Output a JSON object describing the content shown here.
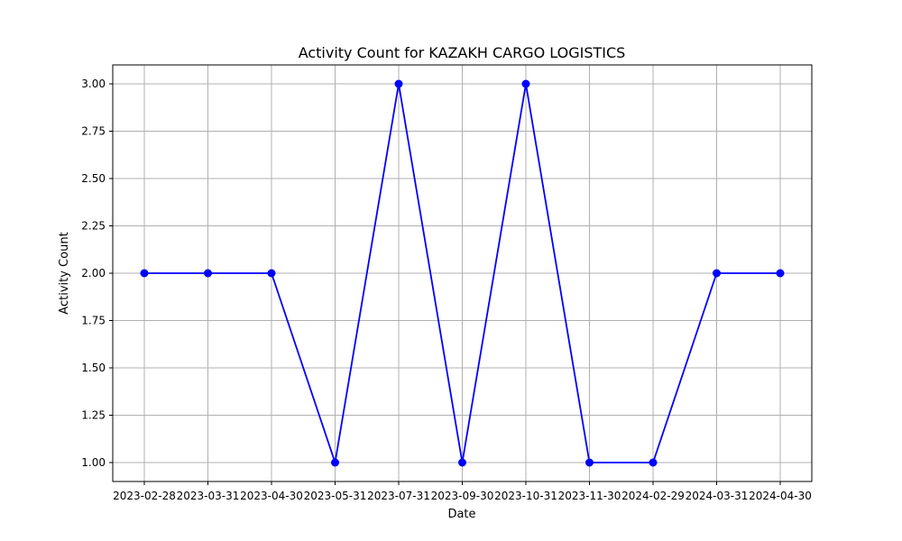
{
  "chart_data": {
    "type": "line",
    "title": "Activity Count for KAZAKH CARGO LOGISTICS",
    "xlabel": "Date",
    "ylabel": "Activity Count",
    "categories": [
      "2023-02-28",
      "2023-03-31",
      "2023-04-30",
      "2023-05-31",
      "2023-07-31",
      "2023-09-30",
      "2023-10-31",
      "2023-11-30",
      "2024-02-29",
      "2024-03-31",
      "2024-04-30"
    ],
    "values": [
      2,
      2,
      2,
      1,
      3,
      1,
      3,
      1,
      1,
      2,
      2
    ],
    "ylim": [
      0.9,
      3.1
    ],
    "yticks": [
      "1.00",
      "1.25",
      "1.50",
      "1.75",
      "2.00",
      "2.25",
      "2.50",
      "2.75",
      "3.00"
    ],
    "grid": true,
    "marker": "circle",
    "line_color": "#0000ff"
  }
}
